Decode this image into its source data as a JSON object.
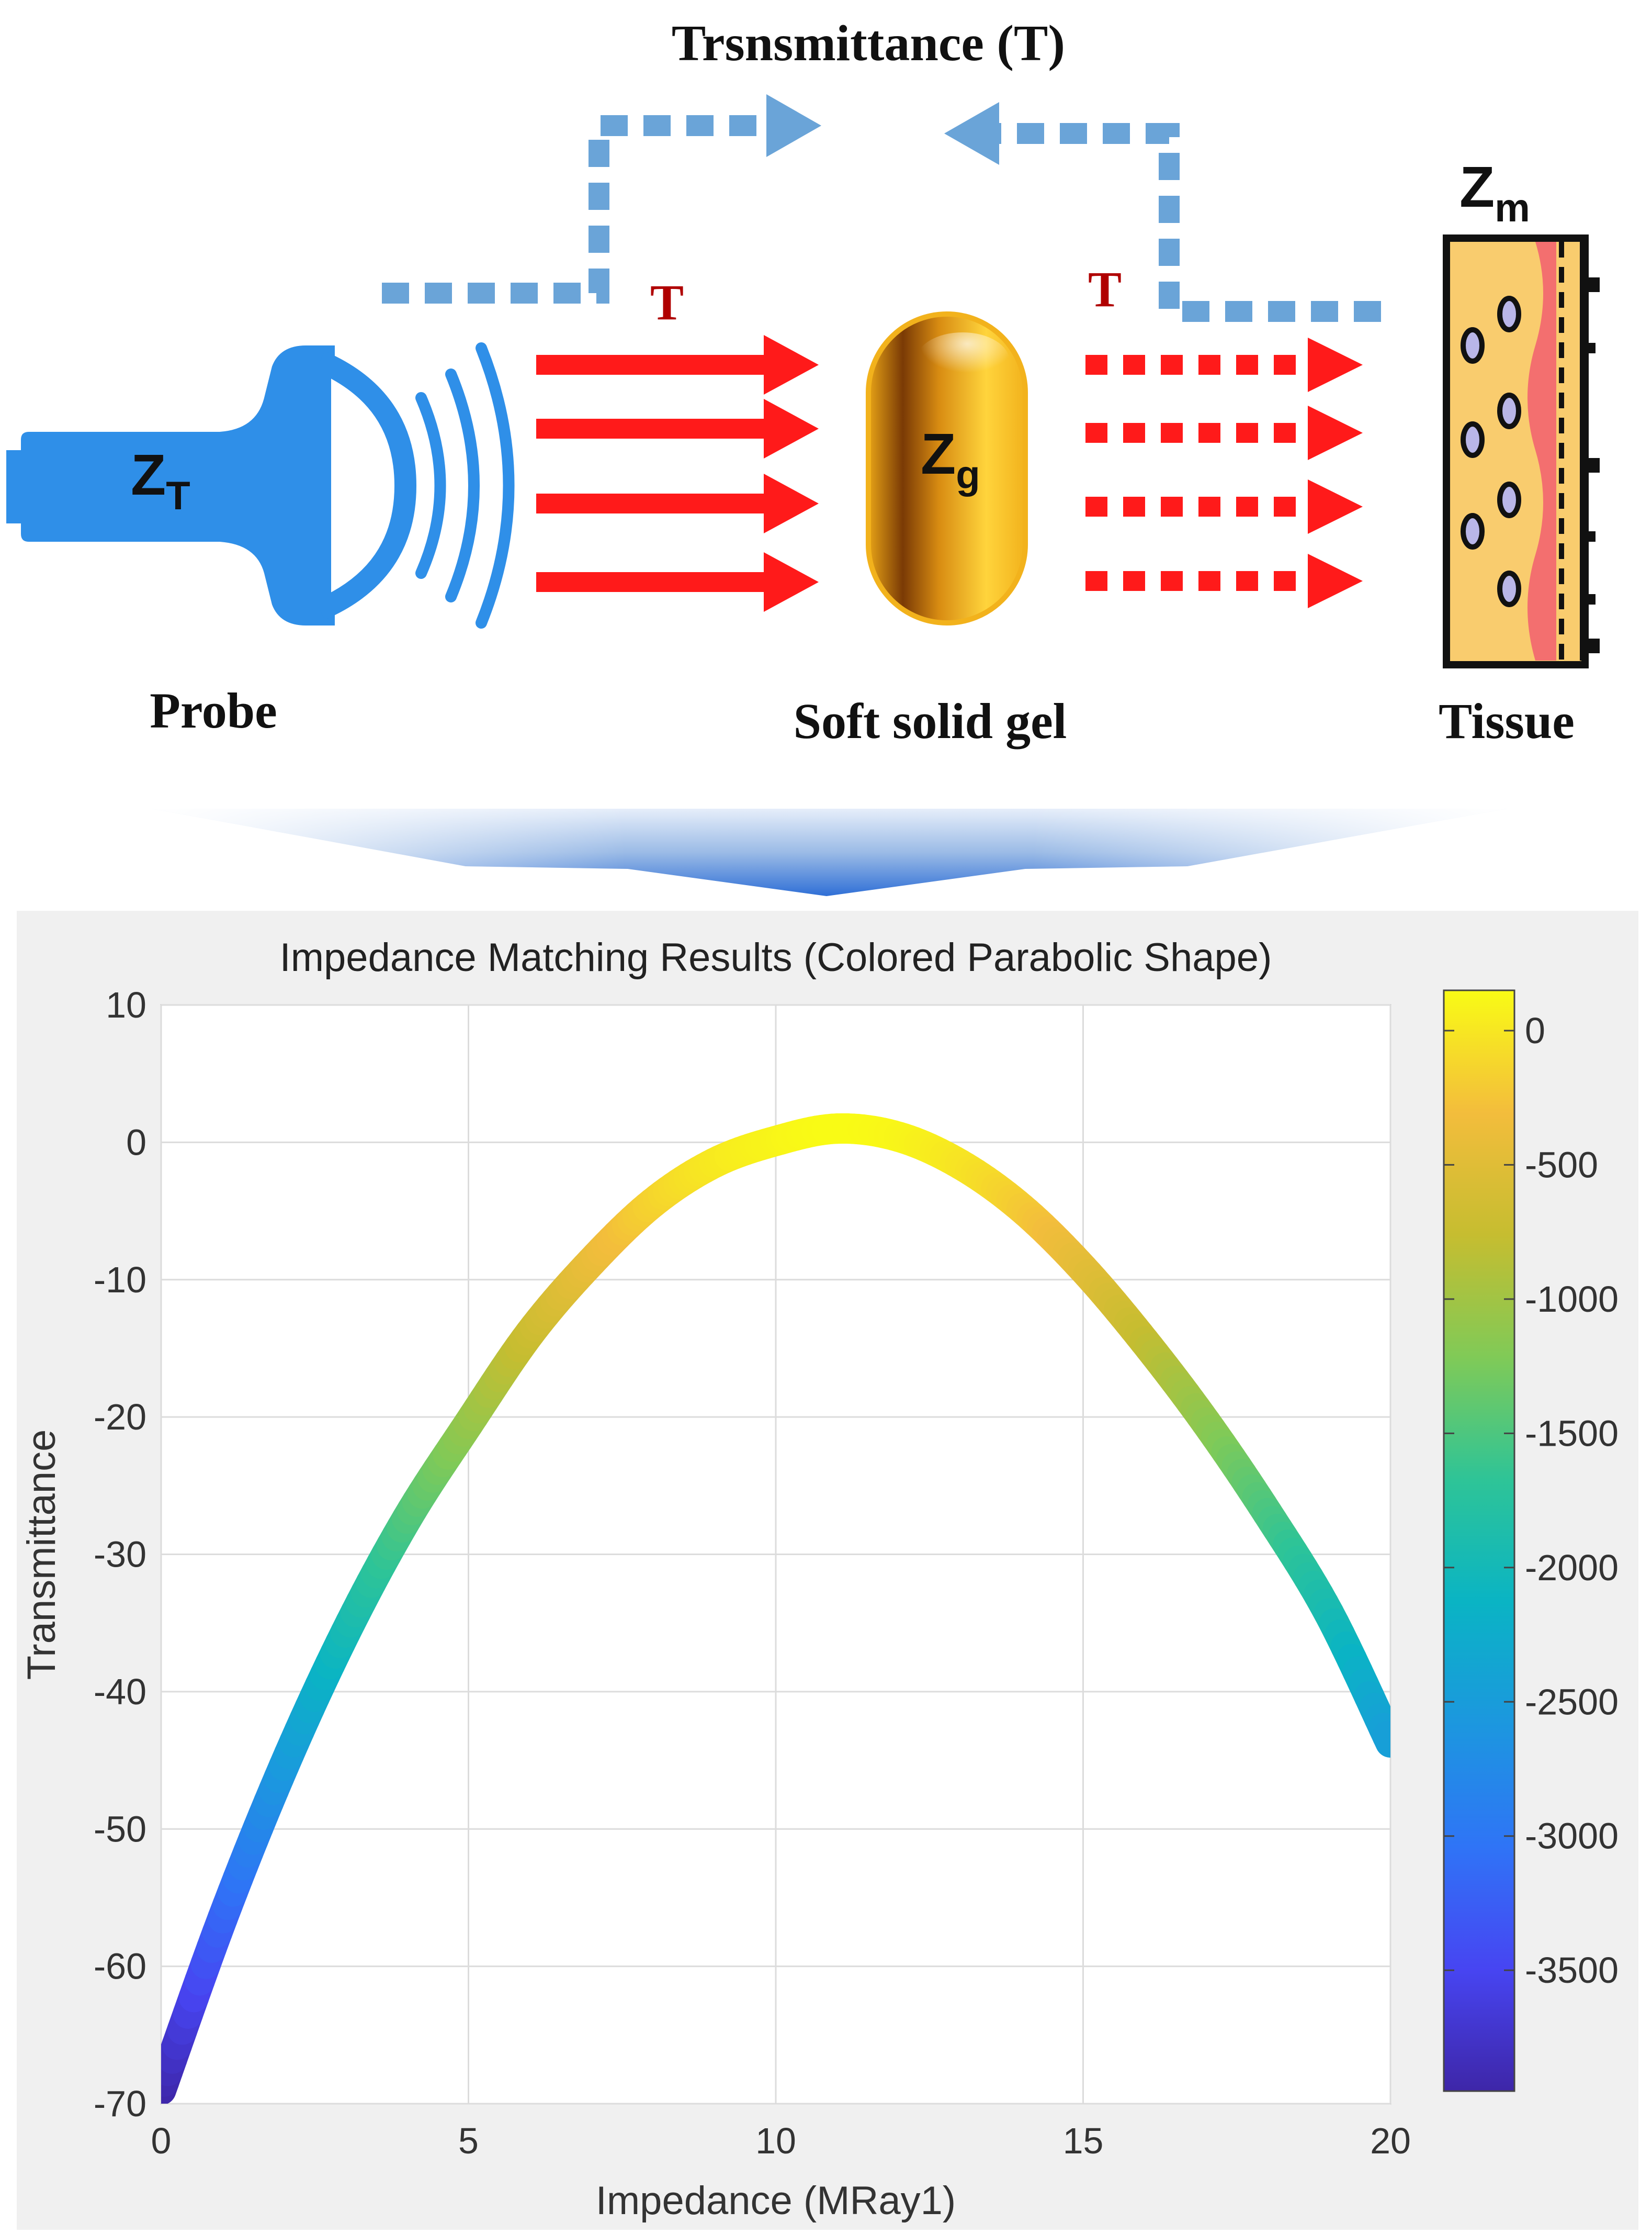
{
  "diagram": {
    "feedback_label": "Trsnsmittance (T)",
    "probe": {
      "symbol": "Z",
      "subscript": "T",
      "label": "Probe"
    },
    "gel": {
      "symbol": "Z",
      "subscript": "g",
      "label": "Soft solid gel"
    },
    "tissue": {
      "symbol": "Z",
      "subscript": "m",
      "label": "Tissue"
    },
    "arrow_label_left": "T",
    "arrow_label_right": "T",
    "colors": {
      "probe": "#2f8fe8",
      "feedback_dashes": "#6aa4d8",
      "transmission_arrows": "#ff1a1a",
      "arrow_label": "#b00000",
      "gel": "#f2b21c",
      "tissue_fill": "#f9cc6e",
      "membrane": "#f36f6f"
    }
  },
  "chart_data": {
    "type": "line",
    "title": "Impedance Matching Results (Colored Parabolic Shape)",
    "xlabel": "Impedance (MRay1)",
    "ylabel": "Transmittance",
    "xlim": [
      0,
      20
    ],
    "ylim": [
      -70,
      10
    ],
    "xticks": [
      0,
      5,
      10,
      15,
      20
    ],
    "yticks": [
      10,
      0,
      -10,
      -20,
      -30,
      -40,
      -50,
      -60,
      -70
    ],
    "grid": true,
    "series": [
      {
        "x": [
          0,
          1,
          2,
          3,
          4,
          5,
          6,
          7,
          8,
          9,
          10,
          11,
          12,
          13,
          14,
          15,
          16,
          17,
          18,
          19,
          20
        ],
        "y": [
          -69,
          -56.5,
          -45.4,
          -35.7,
          -27.4,
          -20.5,
          -13.9,
          -8.7,
          -4.4,
          -1.5,
          0.1,
          1.0,
          0.4,
          -1.6,
          -4.8,
          -9.2,
          -14.5,
          -20.4,
          -27.0,
          -34.3,
          -43.7
        ]
      }
    ],
    "colorbar": {
      "ticks": [
        0,
        -500,
        -1000,
        -1500,
        -2000,
        -2500,
        -3000,
        -3500
      ],
      "range": [
        -3950,
        150
      ],
      "colormap": "parula",
      "stops": [
        "#3e26a8",
        "#4745f2",
        "#2f74f6",
        "#1c97df",
        "#0ab4c4",
        "#2ec497",
        "#80ca57",
        "#c6bd30",
        "#f3bd3c",
        "#f9fb15"
      ]
    }
  }
}
